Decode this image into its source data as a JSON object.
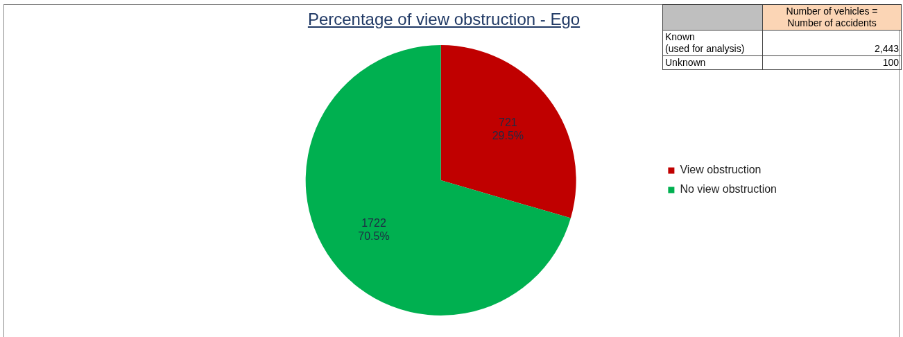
{
  "chart_data": {
    "type": "pie",
    "title": "Percentage of view obstruction - Ego",
    "categories": [
      "View obstruction",
      "No view obstruction"
    ],
    "values": [
      721,
      1722
    ],
    "colors": [
      "#c00000",
      "#00b050"
    ],
    "value_labels": [
      "721\n29.5%",
      "1722\n70.5%"
    ],
    "legend": "right",
    "annotations": [
      "Number of vehicles =\nNumber of accidents",
      "Known\n(used for analysis)",
      "2,443",
      "Unknown",
      "100"
    ]
  }
}
